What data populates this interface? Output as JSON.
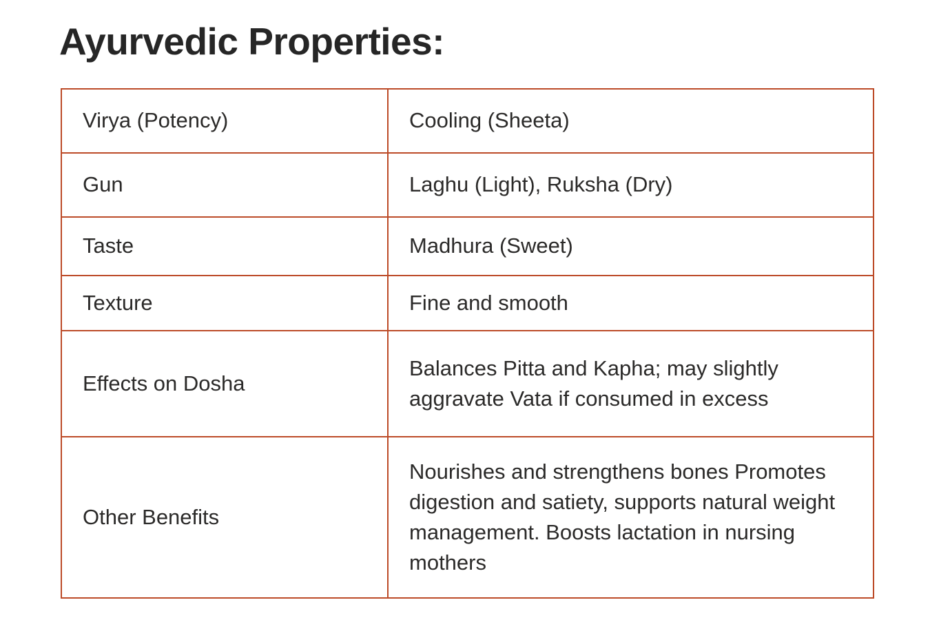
{
  "page": {
    "title": "Ayurvedic Properties:"
  },
  "table": {
    "border_color": "#bc4a27",
    "text_color": "#2b2a29",
    "rows": [
      {
        "property": "Virya (Potency)",
        "value": "Cooling (Sheeta)"
      },
      {
        "property": "Gun",
        "value": "Laghu (Light), Ruksha (Dry)"
      },
      {
        "property": "Taste",
        "value": "Madhura (Sweet)"
      },
      {
        "property": "Texture",
        "value": "Fine and smooth"
      },
      {
        "property": "Effects on Dosha",
        "value": "Balances Pitta and Kapha; may slightly aggravate Vata if consumed in excess"
      },
      {
        "property": "Other Benefits",
        "value": "Nourishes and strengthens bones Promotes digestion and satiety, supports natural weight management. Boosts lactation in nursing mothers"
      }
    ]
  }
}
